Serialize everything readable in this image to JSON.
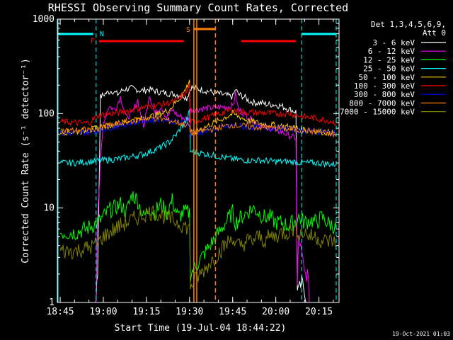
{
  "chart_data": {
    "type": "line",
    "title": "RHESSI Observing Summary Count Rates, Corrected",
    "xlabel": "Start Time (19-Jul-04 18:44:22)",
    "ylabel": "Corrected Count Rate (s⁻¹ detector⁻¹)",
    "yscale": "log",
    "ylim": [
      1,
      1000
    ],
    "xlim_minutes": [
      -1,
      97
    ],
    "x_ticks": [
      {
        "label": "18:45",
        "min": 0
      },
      {
        "label": "19:00",
        "min": 15
      },
      {
        "label": "19:15",
        "min": 30
      },
      {
        "label": "19:30",
        "min": 45
      },
      {
        "label": "19:45",
        "min": 60
      },
      {
        "label": "20:00",
        "min": 75
      },
      {
        "label": "20:15",
        "min": 90
      }
    ],
    "y_ticks": [
      {
        "label": "1",
        "v": 1
      },
      {
        "label": "10",
        "v": 10
      },
      {
        "label": "100",
        "v": 100
      },
      {
        "label": "1000",
        "v": 1000
      }
    ],
    "legend_header": [
      "Det 1,3,4,5,6,9,",
      "Att 0"
    ],
    "series": [
      {
        "name": "3 - 6 keV",
        "color": "#000000",
        "x": [
          0,
          12,
          12.5,
          13,
          14,
          16,
          18,
          20,
          22,
          25,
          28,
          31,
          34,
          37,
          40,
          43,
          44,
          45.5,
          60,
          61,
          62,
          64,
          66,
          68,
          70,
          72,
          74,
          77,
          80,
          82,
          82.5,
          83,
          84,
          85,
          86,
          87
        ],
        "y": [
          0.8,
          0.8,
          1.2,
          2,
          150,
          165,
          175,
          160,
          180,
          185,
          175,
          180,
          170,
          165,
          160,
          155,
          145,
          190,
          150,
          180,
          160,
          150,
          135,
          130,
          130,
          125,
          125,
          120,
          110,
          105,
          1.5,
          1.3,
          1.6,
          1.4,
          0.8,
          0.8
        ]
      },
      {
        "name": "6 - 12 keV",
        "color": "#ff00ff",
        "x": [
          0,
          12,
          12.5,
          13,
          15,
          17,
          19,
          21,
          23,
          25,
          27,
          29,
          31,
          33,
          35,
          37,
          39,
          41,
          43,
          45,
          45.5,
          60,
          61,
          62,
          64,
          66,
          68,
          70,
          72,
          74,
          76,
          78,
          80,
          82,
          82.5,
          83,
          85,
          86,
          87
        ],
        "y": [
          0.8,
          0.8,
          1.2,
          9,
          80,
          120,
          110,
          150,
          90,
          100,
          140,
          70,
          160,
          100,
          120,
          90,
          110,
          95,
          90,
          85,
          110,
          120,
          160,
          110,
          100,
          90,
          80,
          75,
          70,
          70,
          65,
          62,
          58,
          55,
          1.5,
          5,
          2,
          2,
          0.8
        ]
      },
      {
        "name": "12 - 25 keV",
        "color": "#00ff00",
        "x": [
          0,
          5,
          9,
          11,
          13,
          15,
          17,
          19,
          21,
          23,
          25,
          27,
          29,
          31,
          33,
          35,
          37,
          39,
          41,
          43,
          45,
          45.3,
          60,
          61,
          63,
          65,
          67,
          69,
          71,
          73,
          75,
          77,
          79,
          81,
          83,
          85,
          87,
          89,
          91,
          93,
          95,
          96
        ],
        "y": [
          5.5,
          5.5,
          6,
          6.5,
          7,
          8,
          9.5,
          10,
          11,
          9,
          14,
          12,
          8,
          10,
          9,
          11,
          9,
          12,
          8,
          9,
          9,
          2,
          9,
          7,
          8,
          9,
          10,
          9,
          8,
          8,
          7,
          7,
          6.5,
          7,
          8,
          7,
          7.5,
          7,
          8,
          7,
          6.5,
          6
        ]
      },
      {
        "name": "25 - 50 keV",
        "color": "#00ffff",
        "x": [
          0,
          5,
          10,
          15,
          20,
          25,
          30,
          35,
          38,
          40,
          42,
          44,
          45,
          45.3,
          60,
          65,
          70,
          75,
          80,
          85,
          90,
          95,
          96
        ],
        "y": [
          30,
          30,
          31,
          32,
          33,
          35,
          38,
          44,
          50,
          58,
          70,
          85,
          105,
          40,
          33,
          32,
          32,
          31,
          31,
          30,
          30,
          29,
          29
        ]
      },
      {
        "name": "50 - 100 keV",
        "color": "#ffcc00",
        "x": [
          0,
          5,
          10,
          15,
          20,
          25,
          30,
          35,
          38,
          40,
          42,
          44,
          45,
          45.3,
          60,
          65,
          70,
          75,
          80,
          85,
          90,
          95,
          96
        ],
        "y": [
          64,
          64,
          66,
          72,
          78,
          84,
          90,
          100,
          110,
          130,
          150,
          190,
          230,
          60,
          100,
          85,
          78,
          75,
          72,
          68,
          65,
          62,
          60
        ]
      },
      {
        "name": "100 - 300 keV",
        "color": "#ff0000",
        "x": [
          0,
          5,
          8,
          10,
          13,
          15,
          20,
          25,
          30,
          35,
          38,
          40,
          42,
          44,
          45,
          45.3,
          60,
          62,
          65,
          70,
          75,
          80,
          83,
          85,
          88,
          90,
          93,
          95,
          96
        ],
        "y": [
          82,
          80,
          79,
          80,
          95,
          97,
          102,
          110,
          118,
          125,
          130,
          135,
          150,
          170,
          200,
          80,
          110,
          105,
          103,
          102,
          100,
          100,
          95,
          92,
          90,
          88,
          85,
          82,
          80
        ]
      },
      {
        "name": "300 - 800 keV",
        "color": "#0000ff",
        "x": [
          0,
          5,
          10,
          15,
          20,
          25,
          30,
          35,
          40,
          42,
          44,
          45,
          45.3,
          60,
          65,
          70,
          75,
          80,
          85,
          90,
          95,
          96
        ],
        "y": [
          62,
          62,
          64,
          68,
          74,
          80,
          85,
          88,
          82,
          80,
          78,
          77,
          60,
          75,
          72,
          70,
          70,
          68,
          66,
          64,
          62,
          60
        ]
      },
      {
        "name": "800 - 7000 keV",
        "color": "#ff8000",
        "x": [
          0,
          5,
          10,
          15,
          20,
          25,
          30,
          35,
          40,
          42,
          44,
          45,
          45.3,
          60,
          65,
          70,
          75,
          80,
          85,
          90,
          95,
          96
        ],
        "y": [
          66,
          66,
          68,
          72,
          78,
          84,
          90,
          88,
          82,
          79,
          76,
          74,
          62,
          76,
          73,
          71,
          70,
          68,
          66,
          64,
          60,
          58
        ]
      },
      {
        "name": "7000 - 15000 keV",
        "color": "#808000",
        "x": [
          0,
          5,
          10,
          13,
          15,
          17,
          19,
          21,
          23,
          25,
          27,
          29,
          31,
          33,
          35,
          37,
          39,
          41,
          43,
          45,
          45.3,
          60,
          61,
          63,
          65,
          67,
          69,
          71,
          73,
          75,
          77,
          79,
          81,
          83,
          85,
          87,
          89,
          91,
          93,
          95,
          96
        ],
        "y": [
          3.5,
          3.5,
          3.8,
          4.2,
          5,
          5.5,
          6,
          6.5,
          7,
          7.5,
          8,
          8.5,
          9,
          9,
          8.5,
          8,
          7.5,
          7,
          6.5,
          6,
          1.5,
          5,
          4,
          4,
          4.5,
          4.5,
          5,
          4.5,
          5,
          5,
          5.5,
          5.5,
          6,
          5.5,
          5.5,
          5,
          5,
          4.5,
          4.5,
          4.5,
          4
        ]
      }
    ],
    "annotations": {
      "N": {
        "label": "N",
        "color": "#00ffff",
        "bars": [
          [
            -1,
            11.5
          ],
          [
            84,
            96
          ]
        ],
        "dashed_lines_min": [
          12.5,
          84,
          96
        ]
      },
      "F": {
        "label": "F",
        "color": "#ff0000",
        "bars": [
          [
            13.5,
            43
          ],
          [
            63,
            82
          ]
        ]
      },
      "S": {
        "label": "S",
        "color": "#ff8000",
        "bar": [
          46.5,
          54
        ],
        "solid_lines_min": [
          46.5,
          47.5
        ],
        "dashed_lines_min": [
          54
        ]
      }
    }
  },
  "footer": {
    "date": "19-Oct-2021 01:03"
  }
}
